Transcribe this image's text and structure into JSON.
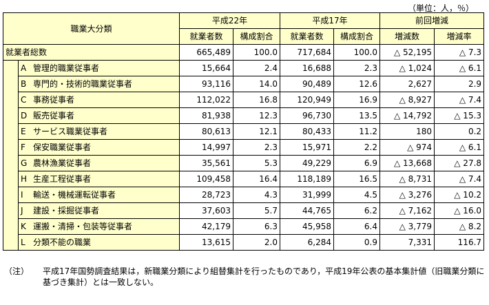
{
  "unit_note": "（単位：人，％）",
  "headers": {
    "category": "職業大分類",
    "h22": "平成22年",
    "h17": "平成17年",
    "change": "前回増減",
    "employed": "就業者数",
    "ratio": "構成割合",
    "diff": "増減数",
    "rate": "増減率"
  },
  "total": {
    "label": "就業者総数",
    "h22_count": "665,489",
    "h22_ratio": "100.0",
    "h17_count": "717,684",
    "h17_ratio": "100.0",
    "diff": "△ 52,195",
    "rate": "△ 7.3"
  },
  "rows": [
    {
      "code": "A",
      "name": "管理的職業従事者",
      "h22_count": "15,664",
      "h22_ratio": "2.4",
      "h17_count": "16,688",
      "h17_ratio": "2.3",
      "diff": "△ 1,024",
      "rate": "△ 6.1"
    },
    {
      "code": "B",
      "name": "専門的・技術的職業従事者",
      "h22_count": "93,116",
      "h22_ratio": "14.0",
      "h17_count": "90,489",
      "h17_ratio": "12.6",
      "diff": "2,627",
      "rate": "2.9"
    },
    {
      "code": "C",
      "name": "事務従事者",
      "h22_count": "112,022",
      "h22_ratio": "16.8",
      "h17_count": "120,949",
      "h17_ratio": "16.9",
      "diff": "△ 8,927",
      "rate": "△ 7.4"
    },
    {
      "code": "D",
      "name": "販売従事者",
      "h22_count": "81,938",
      "h22_ratio": "12.3",
      "h17_count": "96,730",
      "h17_ratio": "13.5",
      "diff": "△ 14,792",
      "rate": "△ 15.3"
    },
    {
      "code": "E",
      "name": "サービス職業従事者",
      "h22_count": "80,613",
      "h22_ratio": "12.1",
      "h17_count": "80,433",
      "h17_ratio": "11.2",
      "diff": "180",
      "rate": "0.2"
    },
    {
      "code": "F",
      "name": "保安職業従事者",
      "h22_count": "14,997",
      "h22_ratio": "2.3",
      "h17_count": "15,971",
      "h17_ratio": "2.2",
      "diff": "△ 974",
      "rate": "△ 6.1"
    },
    {
      "code": "G",
      "name": "農林漁業従事者",
      "h22_count": "35,561",
      "h22_ratio": "5.3",
      "h17_count": "49,229",
      "h17_ratio": "6.9",
      "diff": "△ 13,668",
      "rate": "△ 27.8"
    },
    {
      "code": "H",
      "name": "生産工程従事者",
      "h22_count": "109,458",
      "h22_ratio": "16.4",
      "h17_count": "118,189",
      "h17_ratio": "16.5",
      "diff": "△ 8,731",
      "rate": "△ 7.4"
    },
    {
      "code": "I",
      "name": "輸送・機械運転従事者",
      "h22_count": "28,723",
      "h22_ratio": "4.3",
      "h17_count": "31,999",
      "h17_ratio": "4.5",
      "diff": "△ 3,276",
      "rate": "△ 10.2"
    },
    {
      "code": "J",
      "name": "建設・採掘従事者",
      "h22_count": "37,603",
      "h22_ratio": "5.7",
      "h17_count": "44,765",
      "h17_ratio": "6.2",
      "diff": "△ 7,162",
      "rate": "△ 16.0"
    },
    {
      "code": "K",
      "name": "運搬・清掃・包装等従事者",
      "h22_count": "42,179",
      "h22_ratio": "6.3",
      "h17_count": "45,958",
      "h17_ratio": "6.4",
      "diff": "△ 3,779",
      "rate": "△ 8.2"
    },
    {
      "code": "L",
      "name": "分類不能の職業",
      "h22_count": "13,615",
      "h22_ratio": "2.0",
      "h17_count": "6,284",
      "h17_ratio": "0.9",
      "diff": "7,331",
      "rate": "116.7"
    }
  ],
  "note": {
    "label": "（注）",
    "text": "平成17年国勢調査結果は，新職業分類により組替集計を行ったものであり，平成19年公表の基本集計値（旧職業分類に基づき集計）とは一致しない。"
  },
  "colors": {
    "header_bg": "#ffffcc",
    "border": "#000000"
  }
}
